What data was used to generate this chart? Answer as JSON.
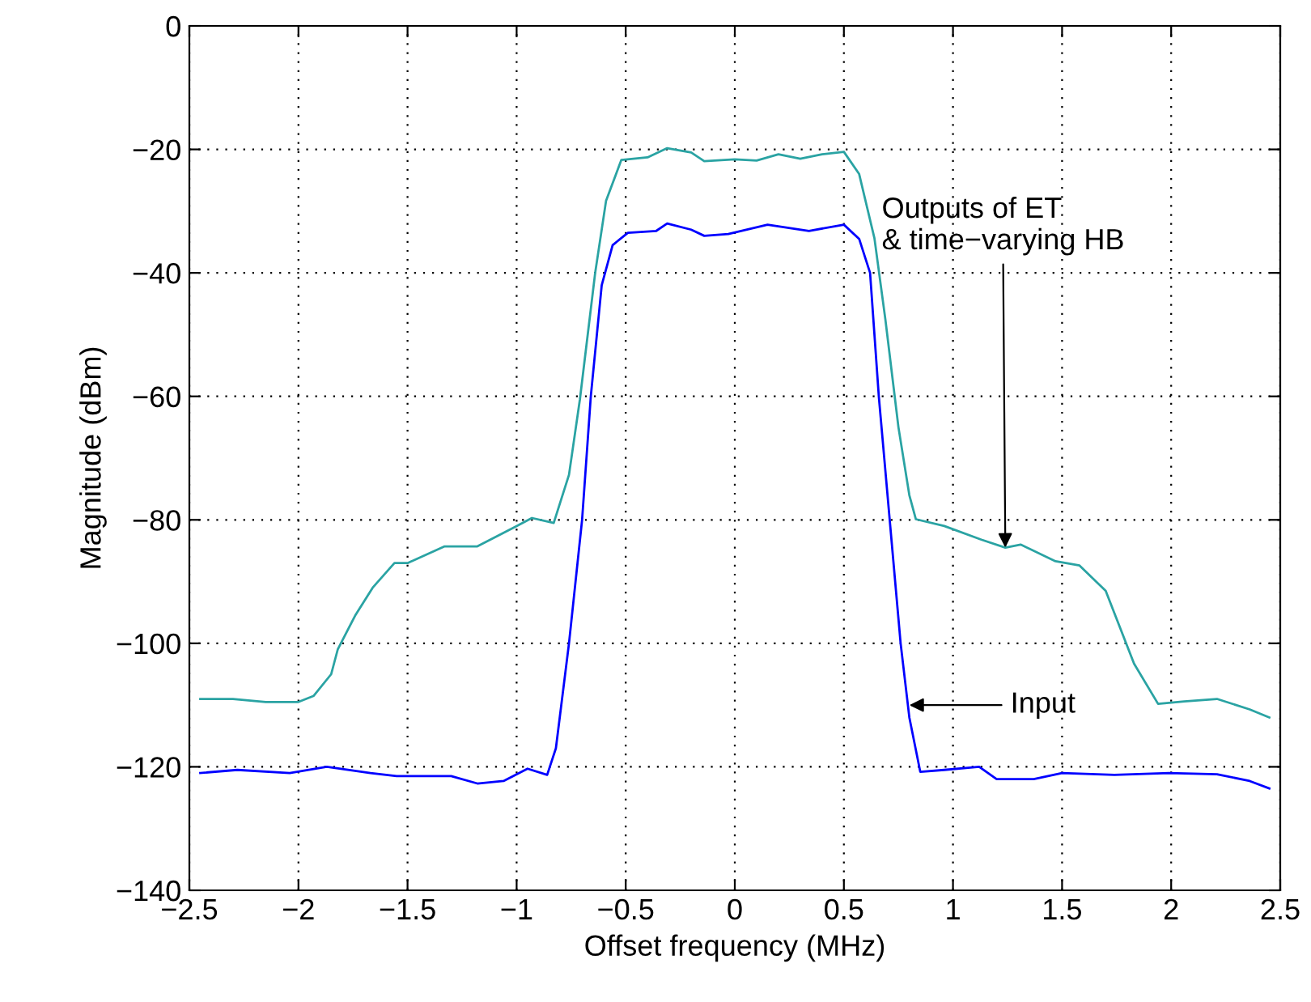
{
  "chart_data": {
    "type": "line",
    "xlabel": "Offset frequency (MHz)",
    "ylabel": "Magnitude (dBm)",
    "xlim": [
      -2.5,
      2.5
    ],
    "xticks": [
      {
        "value": -2.5,
        "label": "−2.5"
      },
      {
        "value": -2,
        "label": "−2"
      },
      {
        "value": -1.5,
        "label": "−1.5"
      },
      {
        "value": -1,
        "label": "−1"
      },
      {
        "value": -0.5,
        "label": "−0.5"
      },
      0,
      0.5,
      1,
      1.5,
      2,
      2.5
    ],
    "ylim": [
      -140,
      0
    ],
    "yticks": [
      {
        "value": -140,
        "label": "−140"
      },
      {
        "value": -120,
        "label": "−120"
      },
      {
        "value": -100,
        "label": "−100"
      },
      {
        "value": -80,
        "label": "−80"
      },
      {
        "value": -60,
        "label": "−60"
      },
      {
        "value": -40,
        "label": "−40"
      },
      {
        "value": -20,
        "label": "−20"
      },
      0
    ],
    "grid": true,
    "line_style": "solid",
    "marker": "none",
    "series": [
      {
        "color": "#2aa3a3",
        "x": [
          -2.45,
          -2.3,
          -2.15,
          -2.0,
          -1.93,
          -1.85,
          -1.82,
          -1.74,
          -1.66,
          -1.56,
          -1.5,
          -1.33,
          -1.18,
          -1.0,
          -0.93,
          -0.83,
          -0.76,
          -0.71,
          -0.64,
          -0.59,
          -0.52,
          -0.4,
          -0.31,
          -0.2,
          -0.14,
          0,
          0.1,
          0.2,
          0.3,
          0.4,
          0.5,
          0.57,
          0.64,
          0.69,
          0.75,
          0.8,
          0.83,
          0.96,
          1.13,
          1.24,
          1.31,
          1.47,
          1.58,
          1.7,
          1.83,
          1.94,
          2.06,
          2.21,
          2.36,
          2.45
        ],
        "values": [
          -109,
          -109,
          -109.5,
          -109.5,
          -108.5,
          -105,
          -101,
          -95.5,
          -91,
          -87,
          -87,
          -84.3,
          -84.3,
          -81,
          -79.7,
          -80.5,
          -72.7,
          -60.5,
          -40,
          -28.3,
          -21.7,
          -21.3,
          -19.8,
          -20.5,
          -21.9,
          -21.6,
          -21.8,
          -20.8,
          -21.5,
          -20.8,
          -20.4,
          -24,
          -34.4,
          -47.5,
          -65,
          -76,
          -79.9,
          -81,
          -83.2,
          -84.5,
          -84,
          -86.7,
          -87.4,
          -91.5,
          -103.3,
          -109.8,
          -109.4,
          -109,
          -110.7,
          -112
        ]
      },
      {
        "color": "#0000ff",
        "x": [
          -2.45,
          -2.28,
          -2.04,
          -1.87,
          -1.67,
          -1.55,
          -1.3,
          -1.18,
          -1.06,
          -0.95,
          -0.86,
          -0.82,
          -0.76,
          -0.7,
          -0.66,
          -0.61,
          -0.56,
          -0.49,
          -0.36,
          -0.31,
          -0.2,
          -0.14,
          -0.03,
          0.15,
          0.34,
          0.5,
          0.57,
          0.62,
          0.66,
          0.71,
          0.76,
          0.8,
          0.85,
          0.96,
          1.12,
          1.2,
          1.37,
          1.5,
          1.74,
          1.99,
          2.21,
          2.36,
          2.45
        ],
        "values": [
          -121,
          -120.5,
          -121,
          -120,
          -121,
          -121.5,
          -121.5,
          -122.7,
          -122.3,
          -120.3,
          -121.3,
          -117,
          -100,
          -80,
          -60,
          -42,
          -35.5,
          -33.5,
          -33.2,
          -32,
          -33,
          -34,
          -33.7,
          -32.2,
          -33.2,
          -32.2,
          -34.5,
          -40,
          -60,
          -80,
          -100,
          -112,
          -120.8,
          -120.5,
          -120,
          -122,
          -122,
          -121,
          -121.3,
          -121,
          -121.2,
          -122.3,
          -123.5
        ]
      }
    ],
    "annotations": [
      {
        "text": "Outputs of ET\n& time−varying HB",
        "x": 1.24,
        "y": -84.5
      },
      {
        "text": "Input",
        "x": 0.8,
        "y": -110
      }
    ]
  }
}
